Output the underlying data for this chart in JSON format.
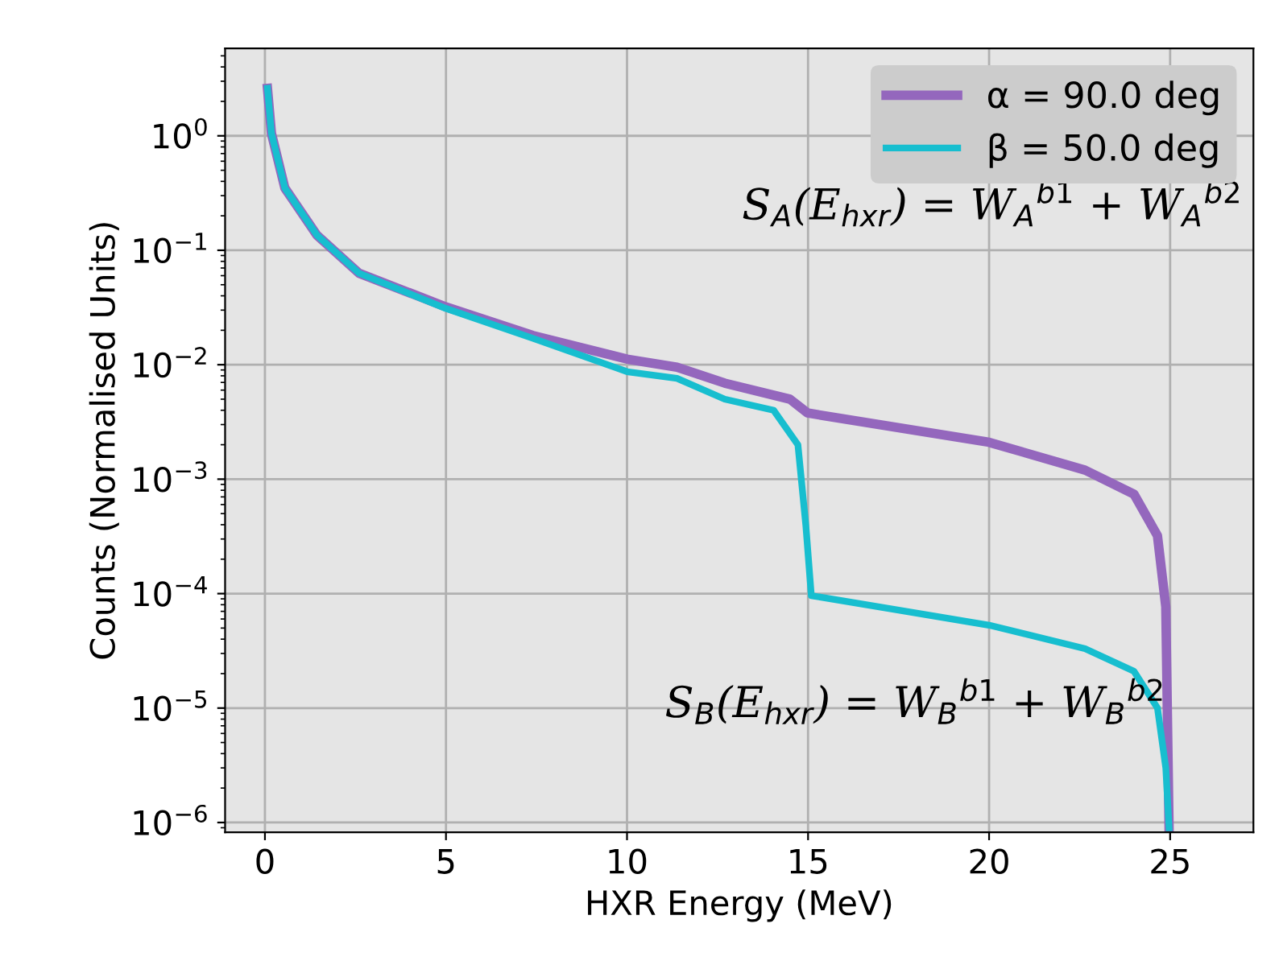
{
  "chart_data": {
    "type": "line",
    "xlabel": "HXR Energy (MeV)",
    "ylabel": "Counts (Normalised Units)",
    "log": "y",
    "grid": true,
    "legend": "top right",
    "marker": "none",
    "line_style": "solid",
    "xlim": [
      -1.1,
      27.3
    ],
    "ylim": [
      8.2e-07,
      5.8
    ],
    "xticks": [
      0,
      5,
      10,
      15,
      20,
      25
    ],
    "yticks": [
      {
        "value": 1e-06,
        "label": "10$^{−6}$"
      },
      {
        "value": 1e-05,
        "label": "10$^{−5}$"
      },
      {
        "value": 0.0001,
        "label": "10$^{−4}$"
      },
      {
        "value": 0.001,
        "label": "10$^{−3}$"
      },
      {
        "value": 0.01,
        "label": "10$^{−2}$"
      },
      {
        "value": 0.1,
        "label": "10$^{−1}$"
      },
      {
        "value": 1,
        "label": "10$^{0}$"
      }
    ],
    "series": [
      {
        "name": "α = 90.0 deg",
        "color": "#9467bd",
        "x": [
          0.07,
          0.18,
          0.55,
          1.44,
          2.6,
          5,
          7.4,
          10,
          11.38,
          12.7,
          14.5,
          14.98,
          15.4,
          20,
          22.65,
          24,
          24.65,
          24.88,
          24.97
        ],
        "values": [
          2.6,
          1.05,
          0.35,
          0.135,
          0.063,
          0.032,
          0.018,
          0.0112,
          0.0095,
          0.0069,
          0.005,
          0.0038,
          0.0036,
          0.0021,
          0.0012,
          0.00074,
          0.00032,
          7.7e-05,
          9e-07
        ]
      },
      {
        "name": "β = 50.0 deg",
        "color": "#17becf",
        "x": [
          0.07,
          0.18,
          0.55,
          1.44,
          2.6,
          5,
          7.4,
          10,
          11.38,
          12.7,
          14.05,
          14.72,
          14.94,
          15.09,
          20,
          22.65,
          24,
          24.65,
          24.88,
          24.97
        ],
        "values": [
          2.6,
          1.05,
          0.35,
          0.135,
          0.063,
          0.031,
          0.017,
          0.0087,
          0.0076,
          0.005,
          0.004,
          0.002,
          0.00039,
          9.6e-05,
          5.3e-05,
          3.3e-05,
          2.1e-05,
          1e-05,
          3e-06,
          9e-07
        ]
      }
    ],
    "annotations": [
      "S$_{A}$(E$_{hxr}$) = W$_{A}$$^{b1}$ + W$_{A}$$^{b2}$",
      "S$_{B}$(E$_{hxr}$) = W$_{B}$$^{b1}$ + W$_{B}$$^{b2}$"
    ]
  }
}
